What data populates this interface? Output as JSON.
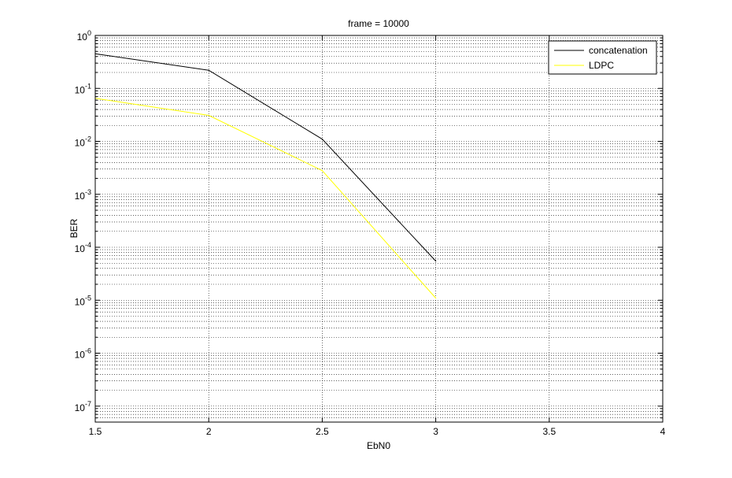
{
  "chart_data": {
    "type": "line",
    "title": "frame = 10000",
    "xlabel": "EbN0",
    "ylabel": "BER",
    "xlim": [
      1.5,
      4
    ],
    "ylim": [
      5e-08,
      1
    ],
    "yscale": "log",
    "grid": true,
    "minor_grid": true,
    "legend_position": "top-right",
    "x_ticks": [
      "1.5",
      "2",
      "2.5",
      "3",
      "3.5",
      "4"
    ],
    "x_tick_values": [
      1.5,
      2,
      2.5,
      3,
      3.5,
      4
    ],
    "y_ticks": [
      {
        "base": "10",
        "exp": "0",
        "value": 1
      },
      {
        "base": "10",
        "exp": "-1",
        "value": 0.1
      },
      {
        "base": "10",
        "exp": "-2",
        "value": 0.01
      },
      {
        "base": "10",
        "exp": "-3",
        "value": 0.001
      },
      {
        "base": "10",
        "exp": "-4",
        "value": 0.0001
      },
      {
        "base": "10",
        "exp": "-5",
        "value": 1e-05
      },
      {
        "base": "10",
        "exp": "-6",
        "value": 1e-06
      },
      {
        "base": "10",
        "exp": "-7",
        "value": 1e-07
      }
    ],
    "series": [
      {
        "name": "concatenation",
        "color": "#000000",
        "x": [
          1.5,
          2,
          2.5,
          3
        ],
        "y": [
          0.45,
          0.22,
          0.011,
          5.5e-05
        ]
      },
      {
        "name": "LDPC",
        "color": "#ffff00",
        "x": [
          1.5,
          2,
          2.5,
          3
        ],
        "y": [
          0.065,
          0.031,
          0.0028,
          1.1e-05
        ]
      }
    ]
  }
}
